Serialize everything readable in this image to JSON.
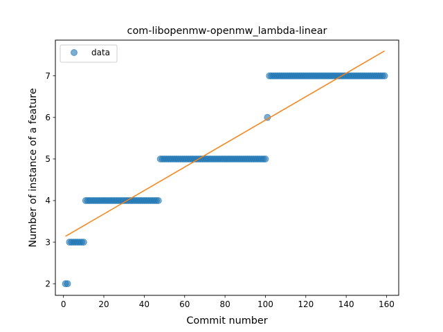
{
  "chart_data": {
    "type": "scatter",
    "title": "com-libopenmw-openmw_lambda-linear",
    "xlabel": "Commit number",
    "ylabel": "Number of instance of a feature",
    "xlim": [
      -4,
      166
    ],
    "ylim": [
      1.72,
      7.86
    ],
    "xticks": [
      0,
      20,
      40,
      60,
      80,
      100,
      120,
      140,
      160
    ],
    "yticks": [
      2,
      3,
      4,
      5,
      6,
      7
    ],
    "grid": false,
    "legend_position": "upper left",
    "series": [
      {
        "name": "data",
        "kind": "points",
        "color": "#1f77b4",
        "segments": [
          {
            "x_start": 1,
            "x_end": 2,
            "y": 2
          },
          {
            "x_start": 3,
            "x_end": 10,
            "y": 3
          },
          {
            "x_start": 11,
            "x_end": 47,
            "y": 4
          },
          {
            "x_start": 48,
            "x_end": 100,
            "y": 5
          },
          {
            "x_start": 101,
            "x_end": 101,
            "y": 6
          },
          {
            "x_start": 102,
            "x_end": 159,
            "y": 7
          }
        ]
      },
      {
        "kind": "line",
        "color": "#ff7f0e",
        "x": [
          1,
          159
        ],
        "y": [
          3.14,
          7.6
        ]
      }
    ]
  }
}
